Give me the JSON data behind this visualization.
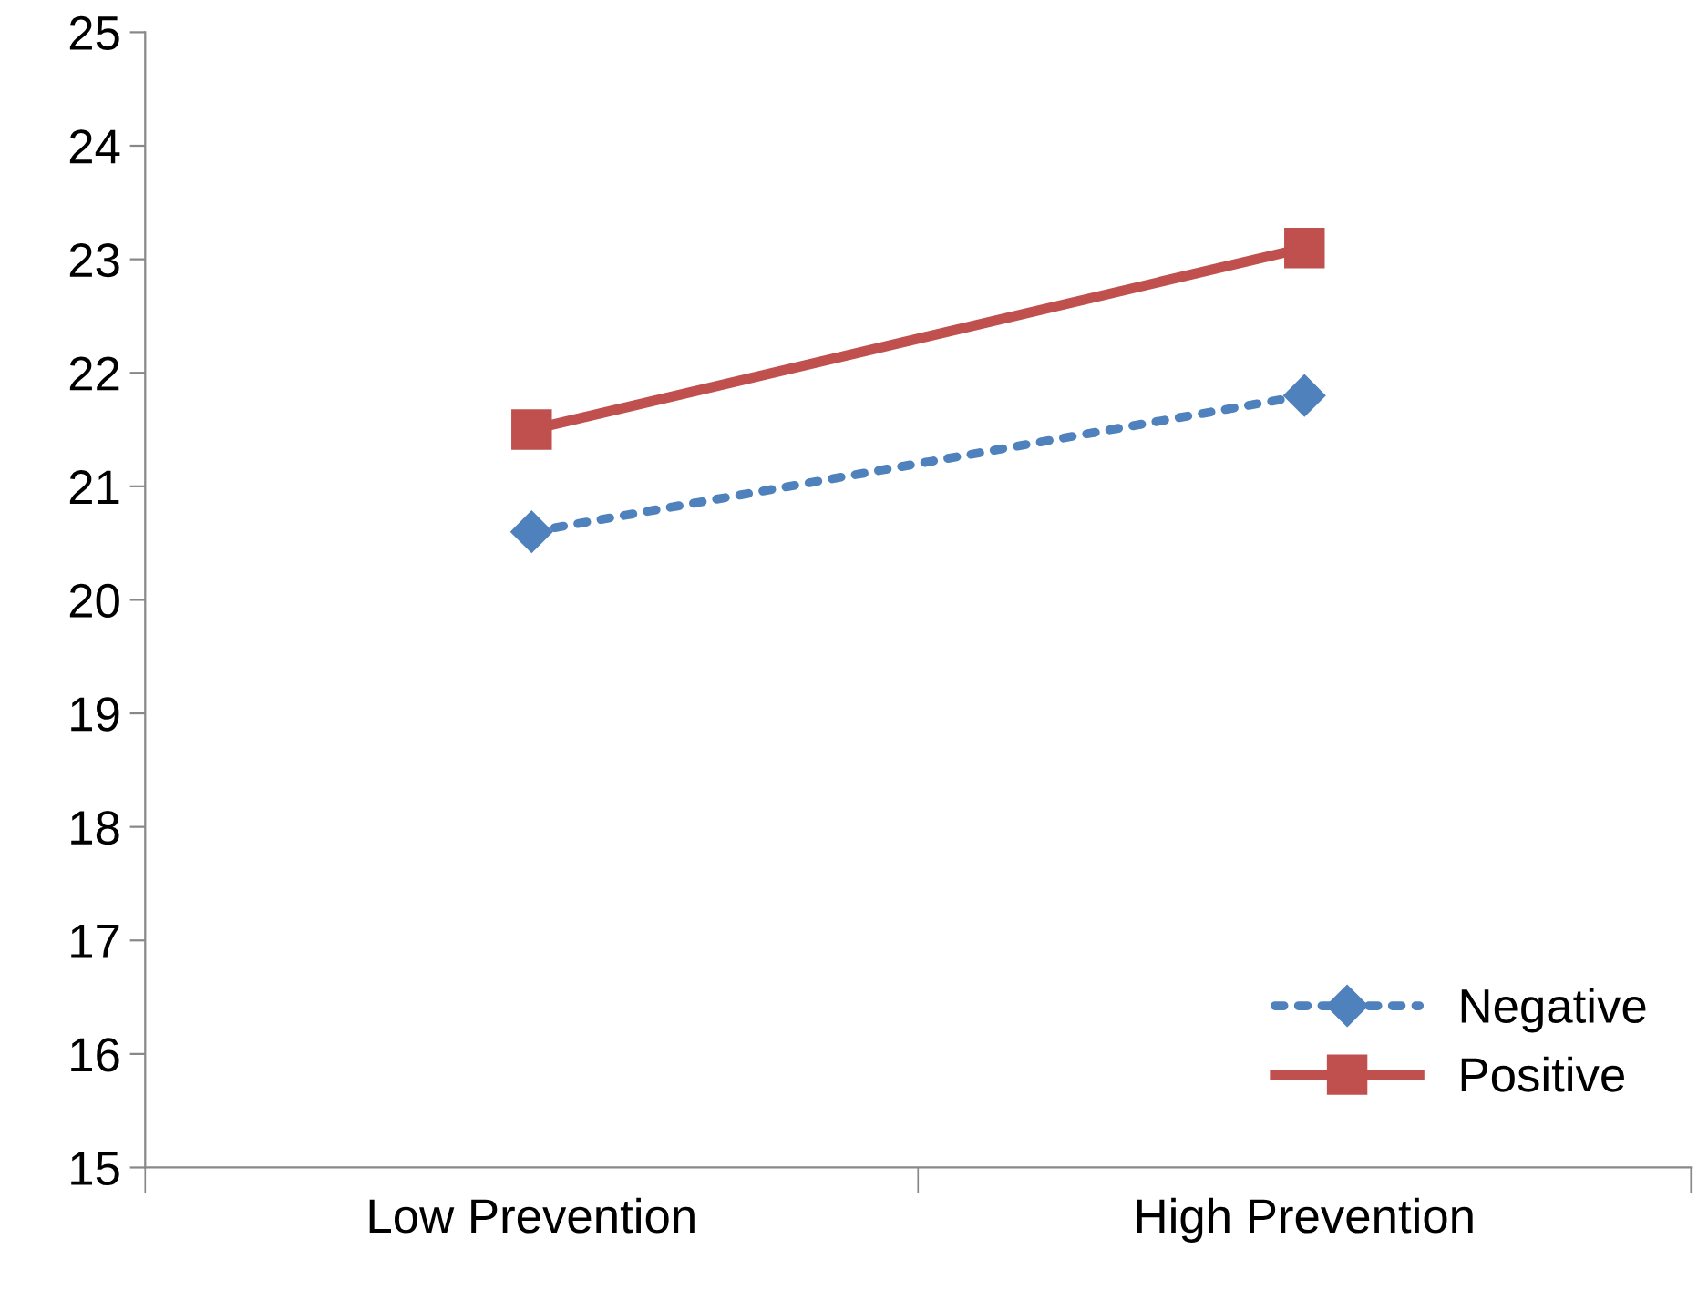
{
  "chart_data": {
    "type": "line",
    "categories": [
      "Low Prevention",
      "High Prevention"
    ],
    "series": [
      {
        "name": "Negative",
        "color": "#4f81bd",
        "values": [
          20.6,
          21.8
        ],
        "marker": "diamond",
        "line_style": "dotted"
      },
      {
        "name": "Positive",
        "color": "#c0504d",
        "values": [
          21.5,
          23.1
        ],
        "marker": "square",
        "line_style": "solid"
      }
    ],
    "ylim": [
      15,
      25
    ],
    "yticks": [
      15,
      16,
      17,
      18,
      19,
      20,
      21,
      22,
      23,
      24,
      25
    ],
    "grid": false,
    "legend": "bottom right"
  }
}
